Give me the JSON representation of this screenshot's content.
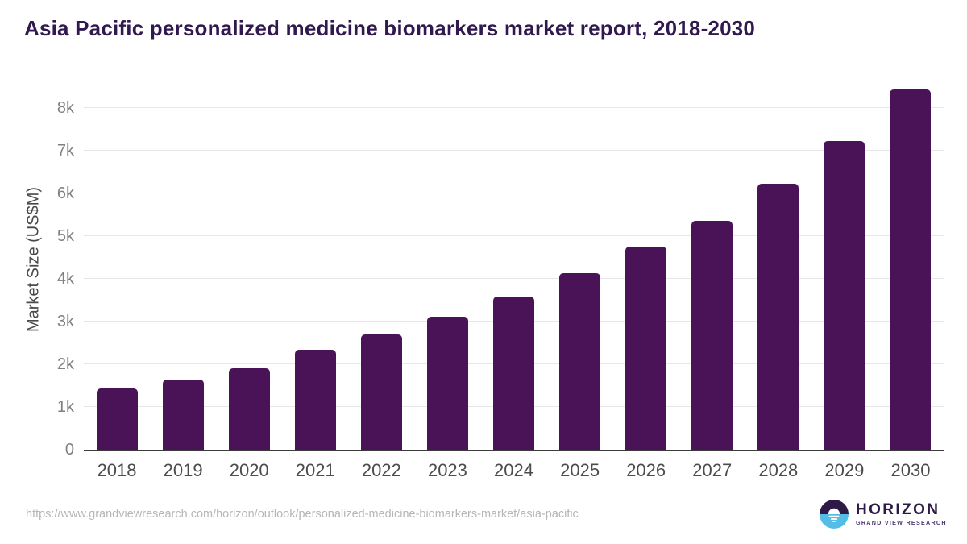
{
  "header": {
    "title": "Asia Pacific personalized medicine biomarkers market report, 2018-2030"
  },
  "chart_data": {
    "type": "bar",
    "title": "Asia Pacific personalized medicine biomarkers market report, 2018-2030",
    "categories": [
      "2018",
      "2019",
      "2020",
      "2021",
      "2022",
      "2023",
      "2024",
      "2025",
      "2026",
      "2027",
      "2028",
      "2029",
      "2030"
    ],
    "values": [
      1430,
      1640,
      1900,
      2340,
      2700,
      3110,
      3580,
      4130,
      4760,
      5360,
      6230,
      7230,
      8440
    ],
    "xlabel": "",
    "ylabel": "Market Size (US$M)",
    "ylim": [
      0,
      8800
    ],
    "yticks": [
      0,
      1000,
      2000,
      3000,
      4000,
      5000,
      6000,
      7000,
      8000
    ],
    "ytick_labels": [
      "0",
      "1k",
      "2k",
      "3k",
      "4k",
      "5k",
      "6k",
      "7k",
      "8k"
    ],
    "grid": true,
    "legend_position": "none",
    "bar_color": "#4a1358"
  },
  "footer": {
    "source_url": "https://www.grandviewresearch.com/horizon/outlook/personalized-medicine-biomarkers-market/asia-pacific",
    "logo": {
      "brand": "HORIZON",
      "sub_brand": "GRAND VIEW RESEARCH"
    }
  },
  "colors": {
    "title_text": "#30194e",
    "bar": "#4a1358",
    "gridline": "#e7e7e7",
    "axis_line": "#3d3d3d",
    "x_tick_text": "#4c4c4c",
    "y_tick_text": "#808080",
    "url_text": "#b6b6b6",
    "logo_purple": "#2e1a47",
    "logo_blue": "#53bde8"
  }
}
